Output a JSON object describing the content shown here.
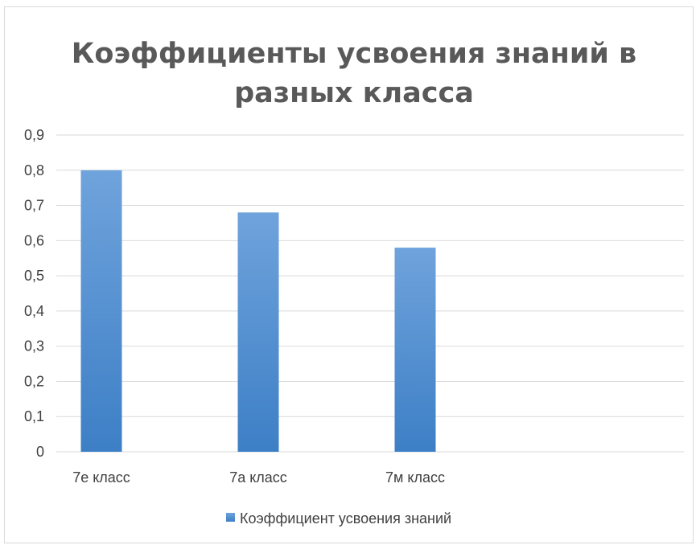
{
  "chart_data": {
    "type": "bar",
    "title_lines": [
      "Коэффициенты усвоения знаний в",
      "разных класса"
    ],
    "categories": [
      "7е класс",
      "7а класс",
      "7м класс",
      ""
    ],
    "series": [
      {
        "name": "Коэффициент усвоения знаний",
        "values": [
          0.8,
          0.68,
          0.58,
          null
        ]
      }
    ],
    "ylim": [
      0,
      0.9
    ],
    "yticks": [
      "0",
      "0,1",
      "0,2",
      "0,3",
      "0,4",
      "0,5",
      "0,6",
      "0,7",
      "0,8",
      "0,9"
    ],
    "grid": true,
    "legend_position": "bottom",
    "colors": {
      "bar_top": "#6fa3dc",
      "bar_bottom": "#3d7fc6",
      "grid": "#d9d9d9",
      "text": "#404040",
      "title": "#595959"
    }
  }
}
